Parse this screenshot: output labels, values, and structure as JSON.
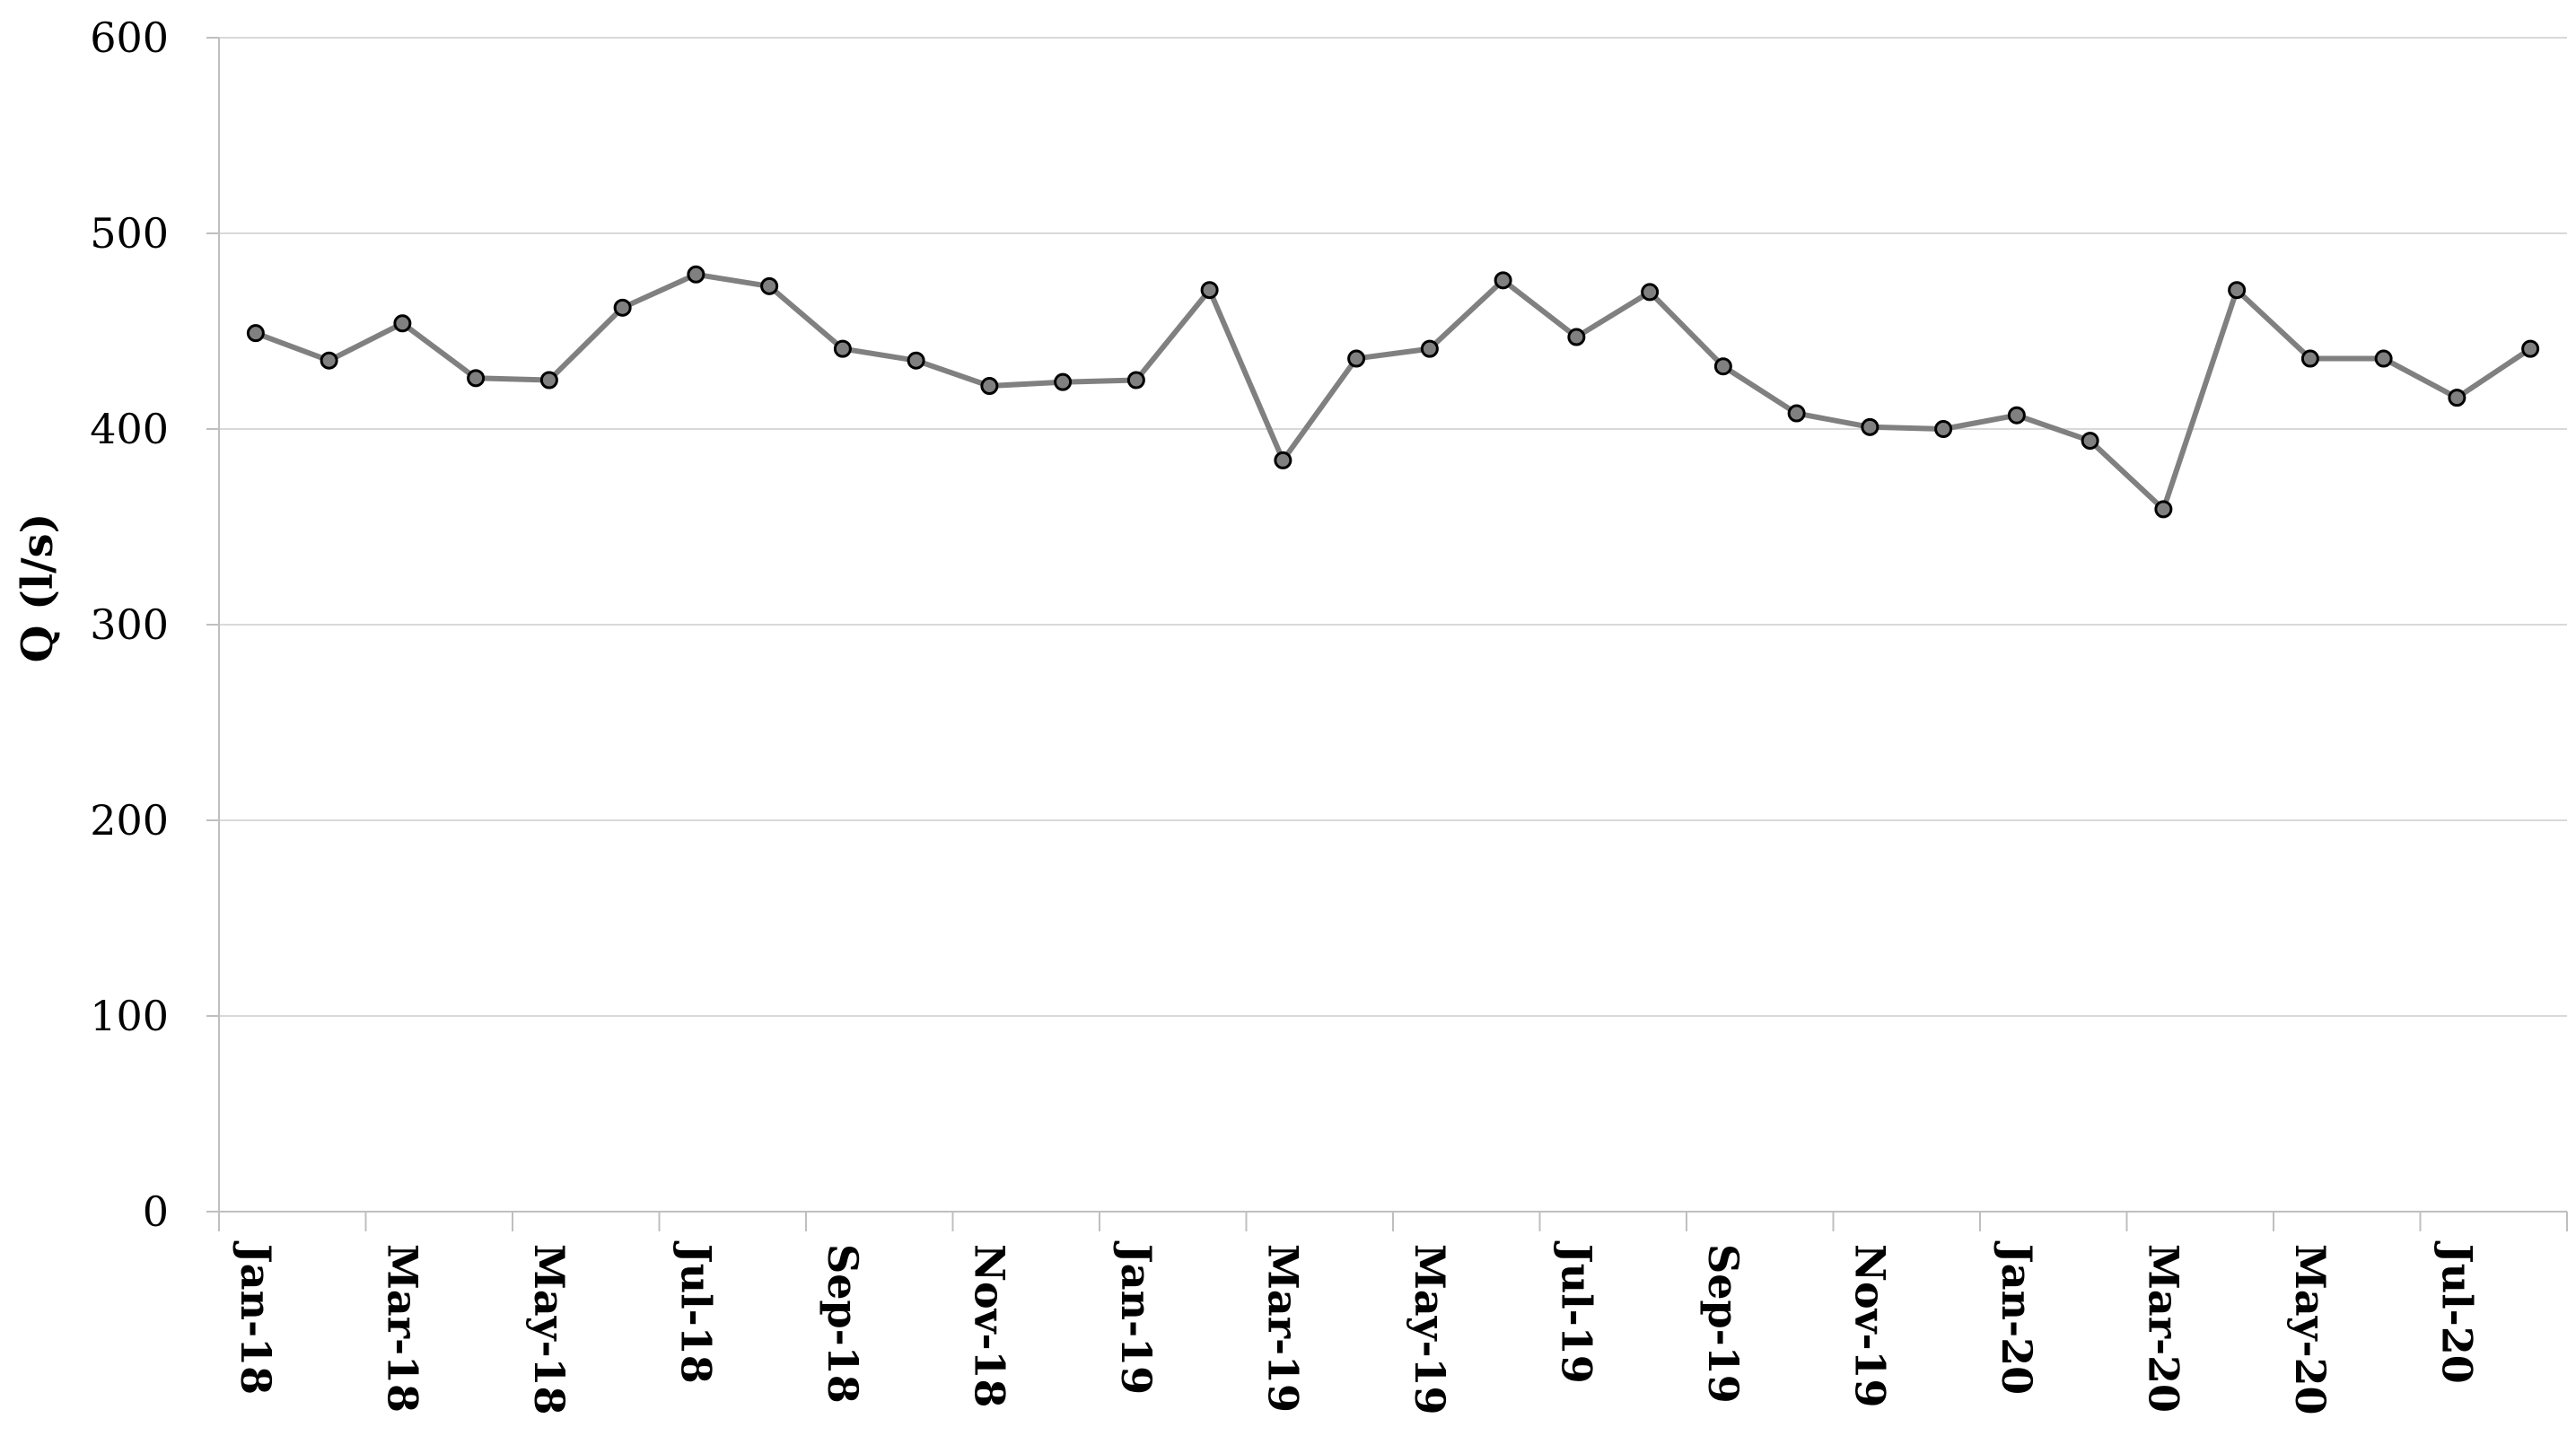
{
  "chart_data": {
    "type": "line",
    "ylabel": "Q (l/s)",
    "xlabel": "",
    "ylim": [
      0,
      600
    ],
    "y_ticks": [
      0,
      100,
      200,
      300,
      400,
      500,
      600
    ],
    "x_tick_labels": [
      "Jan-18",
      "Mar-18",
      "May-18",
      "Jul-18",
      "Sep-18",
      "Nov-18",
      "Jan-19",
      "Mar-19",
      "May-19",
      "Jul-19",
      "Sep-19",
      "Nov-19",
      "Jan-20",
      "Mar-20",
      "May-20",
      "Jul-20"
    ],
    "grid": "horizontal",
    "legend": "none",
    "x": [
      "Jan-18",
      "Feb-18",
      "Mar-18",
      "Apr-18",
      "May-18",
      "Jun-18",
      "Jul-18",
      "Aug-18",
      "Sep-18",
      "Oct-18",
      "Nov-18",
      "Dec-18",
      "Jan-19",
      "Feb-19",
      "Mar-19",
      "Apr-19",
      "May-19",
      "Jun-19",
      "Jul-19",
      "Aug-19",
      "Sep-19",
      "Oct-19",
      "Nov-19",
      "Dec-19",
      "Jan-20",
      "Feb-20",
      "Mar-20",
      "Apr-20",
      "May-20",
      "Jun-20",
      "Jul-20",
      "Aug-20"
    ],
    "series": [
      {
        "values": [
          449,
          435,
          454,
          426,
          425,
          462,
          479,
          473,
          441,
          435,
          422,
          424,
          425,
          471,
          384,
          436,
          441,
          476,
          447,
          470,
          432,
          408,
          401,
          400,
          407,
          394,
          359,
          471,
          436,
          436,
          416,
          441
        ]
      }
    ],
    "colors": {
      "line": "#808080",
      "marker_fill": "#808080",
      "marker_stroke": "#000000",
      "grid": "#d9d9d9"
    }
  }
}
